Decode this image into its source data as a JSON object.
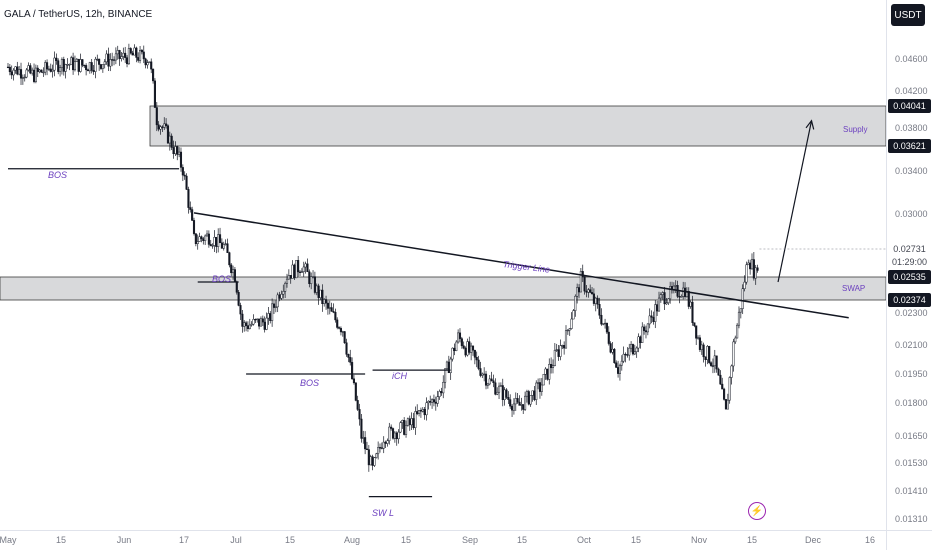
{
  "header": {
    "symbol_title": "GALA / TetherUS, 12h, BINANCE",
    "currency_button": "USDT"
  },
  "price_axis": {
    "ticks": [
      "0.04600",
      "0.04200",
      "0.03800",
      "0.03400",
      "0.03000",
      "0.02300",
      "0.02100",
      "0.01950",
      "0.01800",
      "0.01650",
      "0.01530",
      "0.01410",
      "0.01310"
    ],
    "labels": {
      "supply_top": "0.04041",
      "supply_bottom": "0.03621",
      "current_price": "0.02731",
      "countdown": "01:29:00",
      "swap_top": "0.02535",
      "swap_bottom": "0.02374"
    }
  },
  "time_axis": {
    "ticks": [
      "May",
      "15",
      "Jun",
      "17",
      "Jul",
      "15",
      "Aug",
      "15",
      "Sep",
      "15",
      "Oct",
      "15",
      "Nov",
      "15",
      "Dec",
      "16"
    ]
  },
  "annotations": {
    "bos_1": "BOS",
    "bos_2": "BOS",
    "bos_3": "BOS",
    "ich": "iCH",
    "swl": "SW L",
    "trigger_line": "Trigger Line",
    "supply": "Supply",
    "swap": "SWAP"
  },
  "colors": {
    "candle_up": "#131722",
    "candle_down": "#131722",
    "zone_fill": "#b8b9bd",
    "annotation": "#6b3fbf",
    "background": "#ffffff"
  },
  "chart_data": {
    "type": "candlestick",
    "symbol": "GALA/USDT",
    "interval": "12h",
    "exchange": "BINANCE",
    "close_path": [
      [
        "2022-05-01",
        0.045
      ],
      [
        "2022-05-08",
        0.044
      ],
      [
        "2022-05-15",
        0.0455
      ],
      [
        "2022-05-22",
        0.0452
      ],
      [
        "2022-05-29",
        0.046
      ],
      [
        "2022-06-04",
        0.0465
      ],
      [
        "2022-06-08",
        0.046
      ],
      [
        "2022-06-10",
        0.039
      ],
      [
        "2022-06-13",
        0.0372
      ],
      [
        "2022-06-17",
        0.0342
      ],
      [
        "2022-06-20",
        0.028
      ],
      [
        "2022-06-24",
        0.0283
      ],
      [
        "2022-06-28",
        0.0275
      ],
      [
        "2022-07-01",
        0.0255
      ],
      [
        "2022-07-03",
        0.0222
      ],
      [
        "2022-07-10",
        0.0225
      ],
      [
        "2022-07-15",
        0.0255
      ],
      [
        "2022-07-19",
        0.0262
      ],
      [
        "2022-07-25",
        0.0235
      ],
      [
        "2022-07-30",
        0.022
      ],
      [
        "2022-08-04",
        0.0165
      ],
      [
        "2022-08-07",
        0.015
      ],
      [
        "2022-08-10",
        0.0165
      ],
      [
        "2022-08-17",
        0.017
      ],
      [
        "2022-08-25",
        0.0185
      ],
      [
        "2022-08-30",
        0.0215
      ],
      [
        "2022-09-07",
        0.0192
      ],
      [
        "2022-09-15",
        0.0178
      ],
      [
        "2022-09-21",
        0.0188
      ],
      [
        "2022-09-28",
        0.0215
      ],
      [
        "2022-10-02",
        0.0252
      ],
      [
        "2022-10-07",
        0.023
      ],
      [
        "2022-10-12",
        0.0198
      ],
      [
        "2022-10-18",
        0.0215
      ],
      [
        "2022-10-24",
        0.024
      ],
      [
        "2022-10-30",
        0.0245
      ],
      [
        "2022-11-03",
        0.021
      ],
      [
        "2022-11-07",
        0.02
      ],
      [
        "2022-11-10",
        0.0175
      ],
      [
        "2022-11-12",
        0.021
      ],
      [
        "2022-11-14",
        0.0235
      ],
      [
        "2022-11-16",
        0.0268
      ],
      [
        "2022-11-18",
        0.0255
      ],
      [
        "2022-11-19",
        0.0273
      ]
    ],
    "last_price": 0.02731,
    "zones": [
      {
        "label": "Supply",
        "top": 0.04041,
        "bottom": 0.03621
      },
      {
        "label": "SWAP",
        "top": 0.02535,
        "bottom": 0.02374
      }
    ],
    "levels": [
      {
        "label": "BOS",
        "price": 0.0342,
        "from": "2022-05-01",
        "to": "2022-06-16"
      },
      {
        "label": "BOS",
        "price": 0.025,
        "from": "2022-06-21",
        "to": "2022-07-02"
      },
      {
        "label": "BOS",
        "price": 0.0195,
        "from": "2022-07-04",
        "to": "2022-08-05"
      },
      {
        "label": "iCH",
        "price": 0.0197,
        "from": "2022-08-07",
        "to": "2022-08-28"
      },
      {
        "label": "SW L",
        "price": 0.0139,
        "from": "2022-08-06",
        "to": "2022-08-23"
      }
    ],
    "trigger_line": {
      "label": "Trigger Line",
      "from": [
        "2022-06-20",
        0.0301
      ],
      "to": [
        "2022-12-13",
        0.0227
      ]
    },
    "projection_arrow": {
      "from": [
        "2022-11-24",
        0.025
      ],
      "to": [
        "2022-12-03",
        0.0388
      ]
    },
    "x_ticks": [
      "May",
      "15",
      "Jun",
      "17",
      "Jul",
      "15",
      "Aug",
      "15",
      "Sep",
      "15",
      "Oct",
      "15",
      "Nov",
      "15",
      "Dec",
      "16"
    ],
    "y_ticks": [
      0.046,
      0.042,
      0.038,
      0.034,
      0.03,
      0.023,
      0.021,
      0.0195,
      0.018,
      0.0165,
      0.0153,
      0.0141,
      0.0131
    ],
    "ylim": [
      0.0128,
      0.0505
    ],
    "grid": false,
    "legend": "none"
  }
}
